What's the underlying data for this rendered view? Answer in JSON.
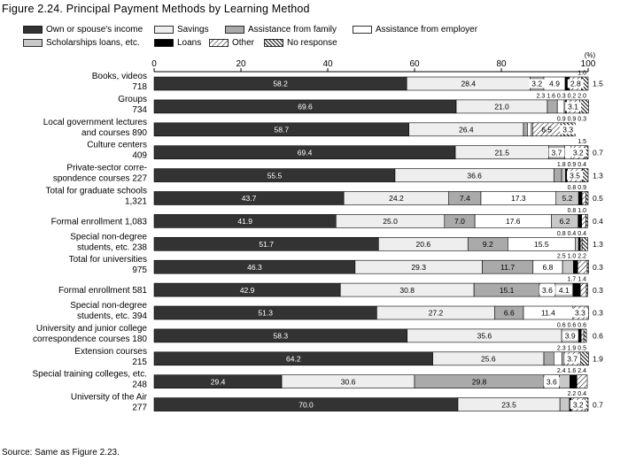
{
  "figure_title": "Figure 2.24. Principal Payment Methods by Learning Method",
  "source": "Source: Same as Figure 2.23.",
  "chart_data": {
    "type": "bar",
    "orientation": "horizontal",
    "stacked": true,
    "xlim": [
      0,
      100
    ],
    "xticks": [
      "0",
      "20",
      "40",
      "60",
      "80",
      "100"
    ],
    "xunit": "(%)",
    "grid": false,
    "legend": "top",
    "series": [
      {
        "name": "Own or spouse's income",
        "fill": "#333333"
      },
      {
        "name": "Savings",
        "fill": "#eeeeee"
      },
      {
        "name": "Assistance from family",
        "fill": "#aaaaaa"
      },
      {
        "name": "Assistance from employer",
        "fill": "#ffffff"
      },
      {
        "name": "Scholarships loans, etc.",
        "fill": "#c8c8c8"
      },
      {
        "name": "Loans",
        "fill": "#000000"
      },
      {
        "name": "Other",
        "fill": "hatch-light"
      },
      {
        "name": "No response",
        "fill": "hatch-dark"
      }
    ],
    "rows": [
      {
        "label": [
          "Books, videos",
          "718"
        ],
        "values": [
          58.2,
          28.4,
          3.2,
          4.9,
          0.0,
          1.0,
          2.8,
          1.5
        ],
        "labels": [
          "58.2",
          "28.4",
          "3.2",
          "4.9",
          "",
          "",
          "2.8",
          ""
        ],
        "above": [
          "1.0"
        ],
        "right": "1.5"
      },
      {
        "label": [
          "Groups",
          "734"
        ],
        "values": [
          69.6,
          21.0,
          2.3,
          1.6,
          0.3,
          0.2,
          3.1,
          2.0
        ],
        "labels": [
          "69.6",
          "21.0",
          "",
          "",
          "",
          "",
          "3.1",
          ""
        ],
        "above": [
          "2.3",
          "1.6",
          "0.3",
          "0.2",
          "2.0"
        ],
        "right": ""
      },
      {
        "label": [
          "Local government lectures",
          "and courses  890"
        ],
        "values": [
          58.7,
          26.4,
          0.9,
          0.9,
          0.3,
          0.0,
          6.5,
          3.3
        ],
        "labels": [
          "58.7",
          "26.4",
          "",
          "",
          "",
          "",
          "6.5",
          "3.3"
        ],
        "above": [
          "0.9",
          "0.9",
          "0.3"
        ],
        "right": ""
      },
      {
        "label": [
          "Culture centers",
          "409"
        ],
        "values": [
          69.4,
          21.5,
          3.7,
          1.5,
          0.0,
          0.0,
          3.2,
          0.7
        ],
        "labels": [
          "69.4",
          "21.5",
          "3.7",
          "",
          "",
          "",
          "3.2",
          ""
        ],
        "above": [
          "1.5"
        ],
        "right": "0.7"
      },
      {
        "label": [
          "Private-sector corre-",
          "spondence courses  227"
        ],
        "values": [
          55.5,
          36.6,
          1.8,
          0.0,
          0.9,
          0.4,
          3.5,
          1.3
        ],
        "labels": [
          "55.5",
          "36.6",
          "",
          "",
          "",
          "",
          "3.5",
          ""
        ],
        "above": [
          "1.8",
          "0.9",
          "0.4"
        ],
        "right": "1.3"
      },
      {
        "label": [
          "Total for graduate schools",
          "1,321"
        ],
        "values": [
          43.7,
          24.2,
          7.4,
          17.3,
          5.2,
          0.8,
          0.9,
          0.5
        ],
        "labels": [
          "43.7",
          "24.2",
          "7.4",
          "17.3",
          "5.2",
          "",
          "",
          ""
        ],
        "above": [
          "0.8",
          "0.9"
        ],
        "right": "0.5"
      },
      {
        "label": [
          "Formal enrollment  1,083"
        ],
        "values": [
          41.9,
          25.0,
          7.0,
          17.6,
          6.2,
          0.8,
          1.0,
          0.4
        ],
        "labels": [
          "41.9",
          "25.0",
          "7.0",
          "17.6",
          "6.2",
          "",
          "",
          ""
        ],
        "above": [
          "0.8",
          "1.0"
        ],
        "right": "0.4"
      },
      {
        "label": [
          "Special non-degree",
          "students, etc.  238"
        ],
        "values": [
          51.7,
          20.6,
          9.2,
          15.5,
          0.8,
          0.4,
          0.4,
          1.3
        ],
        "labels": [
          "51.7",
          "20.6",
          "9.2",
          "15.5",
          "",
          "",
          "",
          ""
        ],
        "above": [
          "0.8",
          "0.4",
          "0.4"
        ],
        "right": "1.3"
      },
      {
        "label": [
          "Total for universities",
          "975"
        ],
        "values": [
          46.3,
          29.3,
          11.7,
          6.8,
          2.5,
          1.0,
          2.2,
          0.3
        ],
        "labels": [
          "46.3",
          "29.3",
          "11.7",
          "6.8",
          "",
          "",
          "",
          ""
        ],
        "above": [
          "2.5",
          "1.0",
          "2.2"
        ],
        "right": "0.3"
      },
      {
        "label": [
          "Formal enrollment  581"
        ],
        "values": [
          42.9,
          30.8,
          15.1,
          3.6,
          4.1,
          1.7,
          1.4,
          0.3
        ],
        "labels": [
          "42.9",
          "30.8",
          "15.1",
          "3.6",
          "4.1",
          "",
          "",
          ""
        ],
        "above": [
          "1.7",
          "1.4"
        ],
        "right": "0.3"
      },
      {
        "label": [
          "Special non-degree",
          "students, etc.  394"
        ],
        "values": [
          51.3,
          27.2,
          6.6,
          11.4,
          0.0,
          0.0,
          3.3,
          0.3
        ],
        "labels": [
          "51.3",
          "27.2",
          "6.6",
          "11.4",
          "",
          "",
          "3.3",
          ""
        ],
        "above": [],
        "right": "0.3"
      },
      {
        "label": [
          "University and junior college",
          "correspondence courses  180"
        ],
        "values": [
          58.3,
          35.6,
          0.0,
          0.0,
          3.9,
          0.6,
          0.6,
          0.6
        ],
        "labels": [
          "58.3",
          "35.6",
          "",
          "",
          "3.9",
          "",
          "",
          ""
        ],
        "above": [
          "0.6",
          "0.6",
          "0.6"
        ],
        "right": "0.6"
      },
      {
        "label": [
          "Extension courses",
          "215"
        ],
        "values": [
          64.2,
          25.6,
          2.3,
          1.9,
          0.5,
          0.0,
          3.7,
          1.9
        ],
        "labels": [
          "64.2",
          "25.6",
          "",
          "",
          "",
          "",
          "3.7",
          ""
        ],
        "above": [
          "2.3",
          "1.9",
          "0.5"
        ],
        "right": "1.9"
      },
      {
        "label": [
          "Special training colleges, etc.",
          "248"
        ],
        "values": [
          29.4,
          30.6,
          29.8,
          3.6,
          2.4,
          1.6,
          2.4,
          0.0
        ],
        "labels": [
          "29.4",
          "30.6",
          "29.8",
          "3.6",
          "",
          "",
          "",
          ""
        ],
        "above": [
          "2.4",
          "1.6",
          "2.4"
        ],
        "right": ""
      },
      {
        "label": [
          "University of the Air",
          "277"
        ],
        "values": [
          70.0,
          23.5,
          0.0,
          0.0,
          2.2,
          0.4,
          3.2,
          0.7
        ],
        "labels": [
          "70.0",
          "23.5",
          "",
          "",
          "",
          "",
          "3.2",
          ""
        ],
        "above": [
          "2.2",
          "0.4"
        ],
        "right": "0.7"
      }
    ]
  }
}
